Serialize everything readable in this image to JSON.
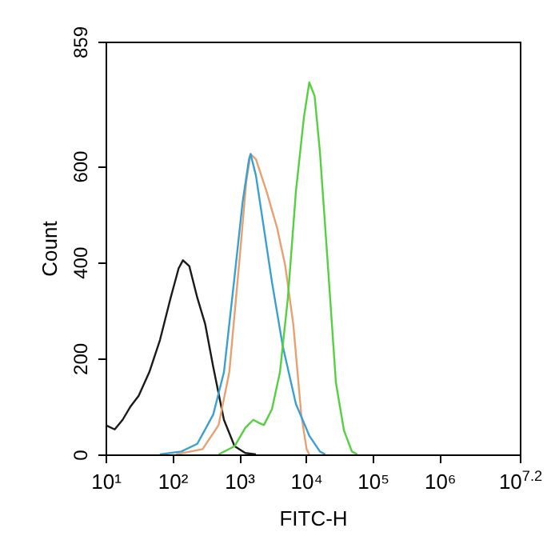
{
  "chart_data": {
    "type": "line",
    "xlabel": "FITC-H",
    "ylabel": "Count",
    "log": "x",
    "grid": false,
    "legend": false,
    "marker": "none",
    "line_style": "solid",
    "xlim": [
      10,
      15848931.92
    ],
    "xticks": [
      {
        "value": 10,
        "label": "10¹"
      },
      {
        "value": 100,
        "label": "10²"
      },
      {
        "value": 1000,
        "label": "10³"
      },
      {
        "value": 10000,
        "label": "10⁴"
      },
      {
        "value": 100000,
        "label": "10⁵"
      },
      {
        "value": 1000000,
        "label": "10⁶"
      },
      {
        "value": 15848931.92,
        "label": "10$^{7.2}$"
      }
    ],
    "ylim": [
      0,
      859
    ],
    "yticks": [
      0,
      200,
      400,
      600,
      859
    ],
    "series": [
      {
        "color": "#1a1a1a",
        "x": [
          10,
          13.7,
          18,
          23.7,
          31.3,
          45.1,
          65.2,
          94.2,
          124,
          144,
          179,
          236,
          310,
          409,
          591,
          853,
          1233,
          1782
        ],
        "values": [
          61,
          52,
          72,
          100,
          122,
          171,
          238,
          326,
          387,
          404,
          392,
          326,
          271,
          182,
          72,
          17,
          3,
          0
        ]
      },
      {
        "color": "#e8a070",
        "x": [
          113,
          284,
          492,
          711,
          1026,
          1279,
          1482,
          1782,
          2572,
          3715,
          4898,
          6449,
          8492,
          10210,
          11190
        ],
        "values": [
          0,
          11,
          61,
          171,
          415,
          569,
          625,
          614,
          547,
          470,
          392,
          271,
          83,
          11,
          0
        ]
      },
      {
        "color": "#3aa0d0",
        "x": [
          65,
          136,
          236,
          409,
          591,
          853,
          1125,
          1402,
          1482,
          1782,
          2346,
          3091,
          4467,
          7063,
          11190,
          16150,
          19400
        ],
        "values": [
          0,
          6,
          22,
          83,
          171,
          370,
          525,
          614,
          625,
          580,
          470,
          359,
          227,
          105,
          39,
          6,
          0
        ]
      },
      {
        "color": "#55d040",
        "x": [
          492,
          853,
          1233,
          1625,
          1954,
          2346,
          3091,
          4074,
          5358,
          7063,
          9311,
          11190,
          13450,
          16150,
          21290,
          28050,
          36980,
          48640,
          58480
        ],
        "values": [
          0,
          17,
          55,
          72,
          66,
          61,
          94,
          171,
          326,
          547,
          702,
          774,
          746,
          630,
          392,
          149,
          50,
          6,
          0
        ]
      }
    ]
  }
}
